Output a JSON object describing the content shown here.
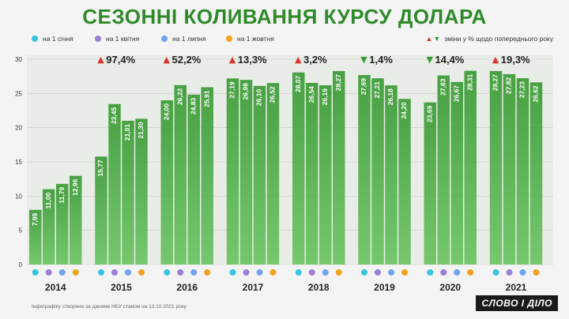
{
  "title": "СЕЗОННІ КОЛИВАННЯ КУРСУ ДОЛАРА",
  "legend": {
    "items": [
      {
        "label": "на 1 січня",
        "color": "#38c5e0"
      },
      {
        "label": "на 1 квітня",
        "color": "#9b7fd6"
      },
      {
        "label": "на 1 липня",
        "color": "#6fa4ee"
      },
      {
        "label": "на 1 жовтня",
        "color": "#f2a31d"
      }
    ],
    "note": "зміни у % щодо попереднього року"
  },
  "footer": "Інфографіку створено за даними НБУ станом на 13.10.2021 року",
  "logo": "СЛОВО І ДІЛО",
  "chart_data": {
    "type": "bar",
    "title": "СЕЗОННІ КОЛИВАННЯ КУРСУ ДОЛАРА",
    "ylim": [
      0,
      30
    ],
    "yticks": [
      0,
      5,
      10,
      15,
      20,
      25,
      30
    ],
    "grid": true,
    "legend_position": "top",
    "categories": [
      "2014",
      "2015",
      "2016",
      "2017",
      "2018",
      "2019",
      "2020",
      "2021"
    ],
    "series": [
      {
        "name": "на 1 січня",
        "values": [
          7.99,
          15.77,
          24.0,
          27.19,
          28.07,
          27.69,
          23.69,
          28.27
        ]
      },
      {
        "name": "на 1 квітня",
        "values": [
          11.0,
          23.45,
          26.22,
          26.98,
          26.54,
          27.21,
          27.63,
          27.82
        ]
      },
      {
        "name": "на 1 липня",
        "values": [
          11.79,
          21.01,
          24.83,
          26.1,
          26.19,
          26.18,
          26.67,
          27.23
        ]
      },
      {
        "name": "на 1 жовтня",
        "values": [
          12.96,
          21.3,
          25.91,
          26.52,
          28.27,
          24.2,
          28.31,
          26.62
        ]
      }
    ],
    "labels": [
      [
        "7,99",
        "11,00",
        "11,79",
        "12,96"
      ],
      [
        "15,77",
        "23,45",
        "21,01",
        "21,30"
      ],
      [
        "24,00",
        "26,22",
        "24,83",
        "25,91"
      ],
      [
        "27,19",
        "26,98",
        "26,10",
        "26,52"
      ],
      [
        "28,07",
        "26,54",
        "26,19",
        "28,27"
      ],
      [
        "27,69",
        "27,21",
        "26,18",
        "24,20"
      ],
      [
        "23,69",
        "27,63",
        "26,67",
        "28,31"
      ],
      [
        "28,27",
        "27,82",
        "27,23",
        "26,62"
      ]
    ],
    "annotations": [
      null,
      {
        "text": "97,4%",
        "direction": "up"
      },
      {
        "text": "52,2%",
        "direction": "up"
      },
      {
        "text": "13,3%",
        "direction": "up"
      },
      {
        "text": "3,2%",
        "direction": "up"
      },
      {
        "text": "1,4%",
        "direction": "down"
      },
      {
        "text": "14,4%",
        "direction": "down"
      },
      {
        "text": "19,3%",
        "direction": "up"
      }
    ],
    "colors": {
      "bar": "#3a9a35",
      "bar_light": "#6cc464",
      "up": "#d9362b",
      "down": "#3a9a35"
    }
  }
}
